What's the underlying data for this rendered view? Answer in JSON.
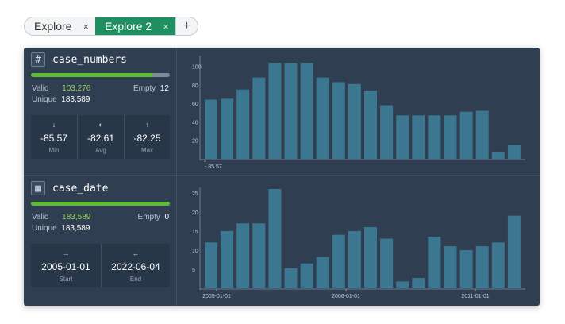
{
  "tabs": [
    {
      "label": "Explore",
      "close": "×",
      "active": false
    },
    {
      "label": "Explore 2",
      "close": "×",
      "active": true
    }
  ],
  "add_tab": "+",
  "colors": {
    "accent": "#1f8f62",
    "bar": "#3b7790",
    "valid": "#5bbd2f",
    "panel": "#2f3e50"
  },
  "fields": [
    {
      "name": "case_numbers",
      "icon": "#",
      "icon_name": "hash-icon",
      "valid_fraction": 0.88,
      "valid_label": "Valid",
      "valid_value": "103,276",
      "empty_label": "Empty",
      "empty_value": "12",
      "unique_label": "Unique",
      "unique_value": "183,589",
      "summary": [
        {
          "icon": "↓",
          "icon_name": "arrow-down-icon",
          "value": "-85.57",
          "label": "Min"
        },
        {
          "icon": "◐",
          "icon_name": "half-circle-icon",
          "value": "-82.61",
          "label": "Avg"
        },
        {
          "icon": "↑",
          "icon_name": "arrow-up-icon",
          "value": "-82.25",
          "label": "Max"
        }
      ]
    },
    {
      "name": "case_date",
      "icon": "▦",
      "icon_name": "calendar-icon",
      "valid_fraction": 1.0,
      "valid_label": "Valid",
      "valid_value": "183,589",
      "empty_label": "Empty",
      "empty_value": "0",
      "unique_label": "Unique",
      "unique_value": "183,589",
      "summary": [
        {
          "icon": "→",
          "icon_name": "arrow-right-icon",
          "value": "2005-01-01",
          "label": "Start"
        },
        {
          "icon": "←",
          "icon_name": "arrow-left-icon",
          "value": "2022-06-04",
          "label": "End"
        }
      ]
    }
  ],
  "chart_data": [
    {
      "type": "bar",
      "ylim": [
        0,
        110
      ],
      "yticks": [
        20,
        40,
        60,
        80,
        100
      ],
      "values": [
        64,
        65,
        75,
        88,
        104,
        104,
        104,
        88,
        83,
        81,
        74,
        58,
        47,
        47,
        47,
        47,
        51,
        52,
        7,
        15
      ],
      "x_tick_labels": [
        "- 85.57"
      ],
      "grid": false
    },
    {
      "type": "bar",
      "ylim": [
        0,
        26
      ],
      "yticks": [
        5,
        10,
        15,
        20,
        25
      ],
      "values": [
        12,
        15,
        17,
        17,
        26,
        5.2,
        6.5,
        8.2,
        14,
        15,
        16,
        13,
        1.8,
        2.7,
        13.5,
        11,
        10,
        11,
        12,
        19
      ],
      "x_tick_labels": [
        "2005-01-01",
        "2008-01-01",
        "2011-01-01"
      ],
      "grid": false
    }
  ]
}
